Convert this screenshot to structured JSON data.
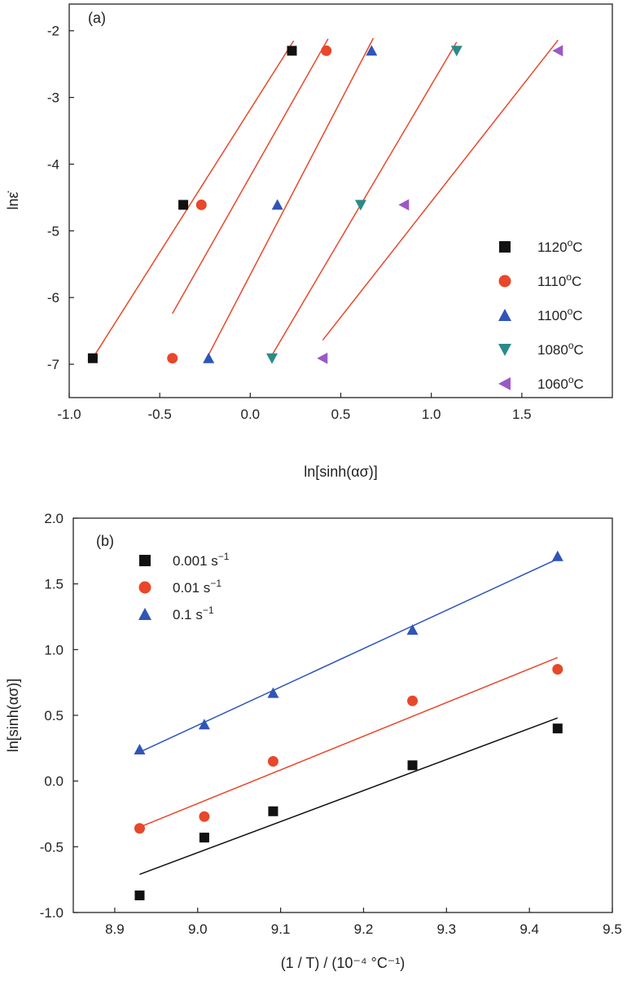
{
  "chart_data": [
    {
      "type": "scatter",
      "panel_label": "(a)",
      "xlabel": "ln[sinh(ασ)]",
      "ylabel": "lnε̇",
      "xlim": [
        -1.0,
        2.0
      ],
      "ylim": [
        -7.5,
        -1.6
      ],
      "x_ticks": [
        -1.0,
        -0.5,
        0.0,
        0.5,
        1.0,
        1.5
      ],
      "y_ticks": [
        -2,
        -3,
        -4,
        -5,
        -6,
        -7
      ],
      "x_tick_labels": [
        "-1.0",
        "-0.5",
        "0.0",
        "0.5",
        "1.0",
        "1.5"
      ],
      "y_tick_labels": [
        "-2",
        "-3",
        "-4",
        "-5",
        "-6",
        "-7"
      ],
      "legend_position": "bottom-right",
      "series": [
        {
          "name": "1120°C",
          "label_main": "1120",
          "label_unit": "C",
          "marker": "square",
          "color": "#111111",
          "x": [
            -0.87,
            -0.37,
            0.23
          ],
          "y": [
            -6.91,
            -4.61,
            -2.3
          ],
          "fit": {
            "x": [
              -0.87,
              0.24
            ],
            "y": [
              -6.91,
              -2.15
            ],
            "color": "#e8472a"
          }
        },
        {
          "name": "1110°C",
          "label_main": "1110",
          "label_unit": "C",
          "marker": "circle",
          "color": "#e8472a",
          "x": [
            -0.43,
            -0.27,
            0.42
          ],
          "y": [
            -6.91,
            -4.61,
            -2.3
          ],
          "fit": {
            "x": [
              -0.43,
              0.43
            ],
            "y": [
              -6.24,
              -2.12
            ],
            "color": "#e8472a"
          }
        },
        {
          "name": "1100°C",
          "label_main": "1100",
          "label_unit": "C",
          "marker": "triangle-up",
          "color": "#2f55b8",
          "x": [
            -0.23,
            0.15,
            0.67
          ],
          "y": [
            -6.91,
            -4.61,
            -2.3
          ],
          "fit": {
            "x": [
              -0.24,
              0.68
            ],
            "y": [
              -6.91,
              -2.11
            ],
            "color": "#e8472a"
          }
        },
        {
          "name": "1080°C",
          "label_main": "1080",
          "label_unit": "C",
          "marker": "triangle-down",
          "color": "#2a8a8a",
          "x": [
            0.12,
            0.61,
            1.14
          ],
          "y": [
            -6.91,
            -4.61,
            -2.3
          ],
          "fit": {
            "x": [
              0.11,
              1.14
            ],
            "y": [
              -6.91,
              -2.17
            ],
            "color": "#e8472a"
          }
        },
        {
          "name": "1060°C",
          "label_main": "1060",
          "label_unit": "C",
          "marker": "triangle-left",
          "color": "#9b59c6",
          "x": [
            0.4,
            0.85,
            1.7
          ],
          "y": [
            -6.91,
            -4.61,
            -2.3
          ],
          "fit": {
            "x": [
              0.4,
              1.7
            ],
            "y": [
              -6.64,
              -2.14
            ],
            "color": "#e8472a"
          }
        }
      ]
    },
    {
      "type": "scatter",
      "panel_label": "(b)",
      "xlabel": "(1 / T) / (10⁻⁴ °C⁻¹)",
      "ylabel": "ln[sinh(ασ)]",
      "xlim": [
        8.85,
        9.5
      ],
      "ylim": [
        -1.0,
        2.0
      ],
      "x_ticks": [
        8.9,
        9.0,
        9.1,
        9.2,
        9.3,
        9.4,
        9.5
      ],
      "y_ticks": [
        2.0,
        1.5,
        1.0,
        0.5,
        0.0,
        -0.5,
        -1.0
      ],
      "x_tick_labels": [
        "8.9",
        "9.0",
        "9.1",
        "9.2",
        "9.3",
        "9.4",
        "9.5"
      ],
      "y_tick_labels": [
        "2.0",
        "1.5",
        "1.0",
        "0.5",
        "0.0",
        "-0.5",
        "-1.0"
      ],
      "legend_position": "top-left",
      "series": [
        {
          "name": "0.001 s⁻¹",
          "label_main": "0.001 s",
          "label_unit": "−1",
          "marker": "square",
          "color": "#111111",
          "x": [
            8.93,
            9.008,
            9.091,
            9.259,
            9.434
          ],
          "y": [
            -0.87,
            -0.43,
            -0.23,
            0.12,
            0.4
          ],
          "fit": {
            "x": [
              8.93,
              9.434
            ],
            "y": [
              -0.71,
              0.48
            ],
            "color": "#111111"
          }
        },
        {
          "name": "0.01 s⁻¹",
          "label_main": "0.01 s",
          "label_unit": "−1",
          "marker": "circle",
          "color": "#e8472a",
          "x": [
            8.93,
            9.008,
            9.091,
            9.259,
            9.434
          ],
          "y": [
            -0.36,
            -0.27,
            0.15,
            0.61,
            0.85
          ],
          "fit": {
            "x": [
              8.93,
              9.434
            ],
            "y": [
              -0.35,
              0.94
            ],
            "color": "#e8472a"
          }
        },
        {
          "name": "0.1 s⁻¹",
          "label_main": "0.1 s",
          "label_unit": "−1",
          "marker": "triangle-up",
          "color": "#2f55b8",
          "x": [
            8.93,
            9.008,
            9.091,
            9.259,
            9.434
          ],
          "y": [
            0.24,
            0.43,
            0.67,
            1.15,
            1.71
          ],
          "fit": {
            "x": [
              8.93,
              9.434
            ],
            "y": [
              0.22,
              1.69
            ],
            "color": "#2f55b8"
          }
        }
      ]
    }
  ]
}
